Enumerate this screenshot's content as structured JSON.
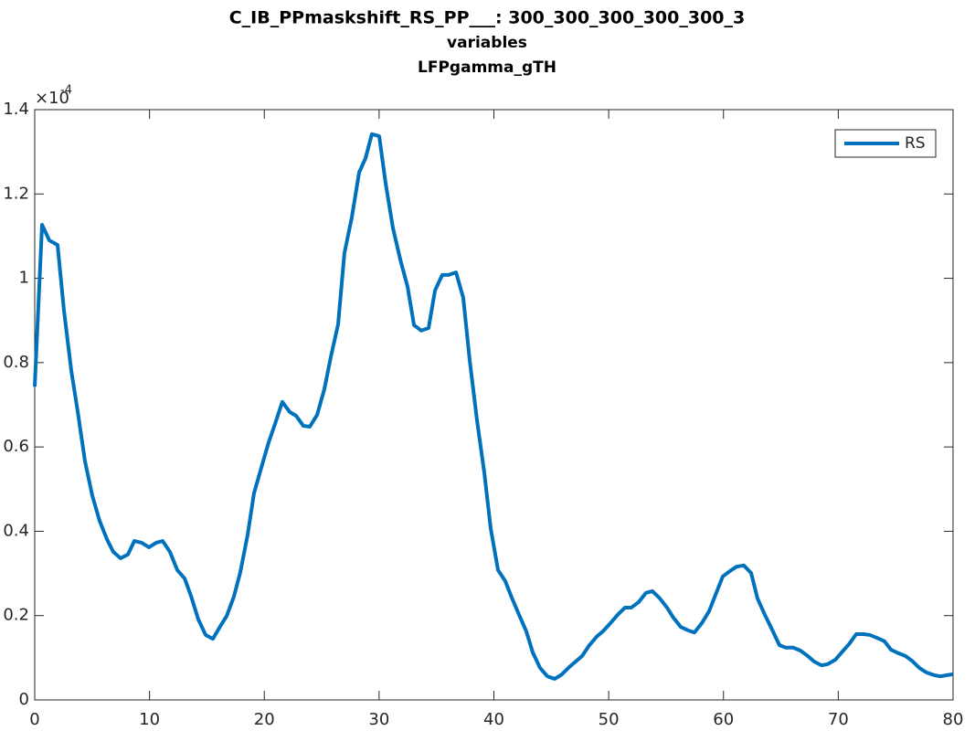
{
  "chart_data": {
    "type": "line",
    "title": "C_IB_PPmaskshift_RS_PP___: 300_300_300_300_300_3",
    "subtitle": "variables",
    "subtitle2": "LFPgamma_gTH",
    "y_multiplier": "×10",
    "y_multiplier_exponent": "-4",
    "legend": "northeast",
    "grid": false,
    "xlim": [
      0,
      80
    ],
    "xticks": [
      0,
      10,
      20,
      30,
      40,
      50,
      60,
      70,
      80
    ],
    "ylim": [
      0,
      1.4
    ],
    "yticks": [
      0,
      0.2,
      0.4,
      0.6,
      0.8,
      1,
      1.2,
      1.4
    ],
    "x": [
      0,
      0.64,
      1.27,
      1.99,
      2.55,
      3.18,
      3.74,
      4.38,
      5.01,
      5.65,
      6.29,
      6.85,
      7.48,
      8.12,
      8.68,
      9.31,
      9.95,
      10.59,
      11.14,
      11.78,
      12.42,
      13.06,
      13.61,
      14.25,
      14.89,
      15.52,
      16.08,
      16.72,
      17.35,
      17.91,
      18.55,
      19.1,
      19.74,
      20.38,
      20.94,
      21.57,
      22.21,
      22.77,
      23.4,
      23.96,
      24.6,
      25.23,
      25.79,
      26.43,
      26.98,
      27.62,
      28.26,
      28.82,
      29.37,
      30.01,
      30.57,
      31.2,
      31.84,
      32.48,
      33.04,
      33.67,
      34.31,
      34.87,
      35.5,
      36.06,
      36.7,
      37.33,
      37.89,
      38.53,
      39.16,
      39.72,
      40.36,
      40.99,
      41.55,
      42.19,
      42.82,
      43.38,
      44.02,
      44.66,
      45.29,
      45.85,
      46.49,
      47.12,
      47.68,
      48.32,
      48.95,
      49.51,
      50.15,
      50.78,
      51.42,
      51.98,
      52.61,
      53.25,
      53.81,
      54.45,
      55.08,
      55.64,
      56.28,
      56.91,
      57.47,
      58.11,
      58.74,
      59.3,
      59.94,
      60.58,
      61.13,
      61.77,
      62.41,
      62.96,
      63.6,
      64.23,
      64.87,
      65.43,
      66.07,
      66.7,
      67.26,
      67.9,
      68.53,
      69.09,
      69.73,
      70.37,
      70.93,
      71.56,
      72.2,
      72.76,
      73.39,
      74.03,
      74.59,
      75.22,
      75.86,
      76.42,
      77.06,
      77.69,
      78.33,
      78.89,
      79.52,
      80
    ],
    "series": [
      {
        "name": "RS",
        "color": "#0072bd",
        "values": [
          0.743,
          1.127,
          1.09,
          1.079,
          0.923,
          0.782,
          0.685,
          0.566,
          0.485,
          0.425,
          0.381,
          0.351,
          0.336,
          0.345,
          0.377,
          0.373,
          0.362,
          0.373,
          0.377,
          0.351,
          0.308,
          0.288,
          0.247,
          0.191,
          0.154,
          0.145,
          0.171,
          0.199,
          0.245,
          0.303,
          0.392,
          0.49,
          0.551,
          0.611,
          0.655,
          0.707,
          0.683,
          0.674,
          0.65,
          0.648,
          0.676,
          0.737,
          0.813,
          0.891,
          1.06,
          1.144,
          1.251,
          1.285,
          1.342,
          1.337,
          1.225,
          1.12,
          1.045,
          0.98,
          0.889,
          0.876,
          0.882,
          0.971,
          1.008,
          1.008,
          1.014,
          0.954,
          0.806,
          0.663,
          0.54,
          0.407,
          0.308,
          0.282,
          0.243,
          0.202,
          0.163,
          0.113,
          0.076,
          0.056,
          0.05,
          0.059,
          0.076,
          0.091,
          0.104,
          0.13,
          0.15,
          0.163,
          0.182,
          0.202,
          0.219,
          0.219,
          0.232,
          0.254,
          0.258,
          0.241,
          0.219,
          0.195,
          0.173,
          0.165,
          0.16,
          0.182,
          0.21,
          0.249,
          0.293,
          0.306,
          0.316,
          0.319,
          0.301,
          0.241,
          0.202,
          0.167,
          0.13,
          0.124,
          0.124,
          0.117,
          0.106,
          0.091,
          0.082,
          0.085,
          0.095,
          0.115,
          0.132,
          0.156,
          0.156,
          0.154,
          0.147,
          0.139,
          0.119,
          0.111,
          0.104,
          0.093,
          0.076,
          0.065,
          0.059,
          0.056,
          0.059,
          0.061
        ]
      }
    ]
  }
}
